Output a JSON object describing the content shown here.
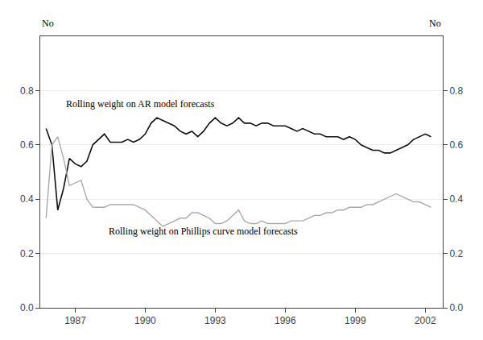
{
  "chart_data": {
    "type": "line",
    "ylabel": "No",
    "y2label": "No",
    "xlim": [
      1985.5,
      2002.75
    ],
    "xticks": [
      1987,
      1990,
      1993,
      1996,
      1999,
      2002
    ],
    "ylim": [
      0.0,
      1.0
    ],
    "yticks": [
      {
        "value": 0.0,
        "label": "0.0"
      },
      0.2,
      0.4,
      0.6,
      0.8
    ],
    "y2lim": [
      0.0,
      1.0
    ],
    "y2ticks": [
      {
        "value": 0.0,
        "label": "0.0"
      },
      0.2,
      0.4,
      0.6,
      0.8
    ],
    "grid": true,
    "x": [
      1985.75,
      1986.0,
      1986.25,
      1986.5,
      1986.75,
      1987.0,
      1987.25,
      1987.5,
      1987.75,
      1988.0,
      1988.25,
      1988.5,
      1988.75,
      1989.0,
      1989.25,
      1989.5,
      1989.75,
      1990.0,
      1990.25,
      1990.5,
      1990.75,
      1991.0,
      1991.25,
      1991.5,
      1991.75,
      1992.0,
      1992.25,
      1992.5,
      1992.75,
      1993.0,
      1993.25,
      1993.5,
      1993.75,
      1994.0,
      1994.25,
      1994.5,
      1994.75,
      1995.0,
      1995.25,
      1995.5,
      1995.75,
      1996.0,
      1996.25,
      1996.5,
      1996.75,
      1997.0,
      1997.25,
      1997.5,
      1997.75,
      1998.0,
      1998.25,
      1998.5,
      1998.75,
      1999.0,
      1999.25,
      1999.5,
      1999.75,
      2000.0,
      2000.25,
      2000.5,
      2000.75,
      2001.0,
      2001.25,
      2001.5,
      2001.75,
      2002.0,
      2002.25
    ],
    "series": [
      {
        "color": "#111111",
        "values": [
          0.66,
          0.6,
          0.36,
          0.44,
          0.55,
          0.53,
          0.52,
          0.54,
          0.6,
          0.62,
          0.64,
          0.61,
          0.61,
          0.61,
          0.62,
          0.61,
          0.62,
          0.64,
          0.68,
          0.7,
          0.69,
          0.68,
          0.67,
          0.65,
          0.64,
          0.65,
          0.63,
          0.65,
          0.68,
          0.7,
          0.68,
          0.67,
          0.68,
          0.7,
          0.68,
          0.68,
          0.67,
          0.68,
          0.68,
          0.67,
          0.67,
          0.67,
          0.66,
          0.65,
          0.66,
          0.65,
          0.64,
          0.64,
          0.63,
          0.63,
          0.63,
          0.62,
          0.63,
          0.62,
          0.6,
          0.59,
          0.58,
          0.58,
          0.57,
          0.57,
          0.58,
          0.59,
          0.6,
          0.62,
          0.63,
          0.64,
          0.63
        ]
      },
      {
        "color": "#aaaaaa",
        "values": [
          0.33,
          0.6,
          0.63,
          0.55,
          0.45,
          0.46,
          0.47,
          0.4,
          0.37,
          0.37,
          0.37,
          0.38,
          0.38,
          0.38,
          0.38,
          0.38,
          0.37,
          0.36,
          0.34,
          0.32,
          0.3,
          0.31,
          0.32,
          0.33,
          0.33,
          0.35,
          0.35,
          0.34,
          0.33,
          0.31,
          0.31,
          0.32,
          0.34,
          0.36,
          0.32,
          0.31,
          0.31,
          0.32,
          0.31,
          0.31,
          0.31,
          0.31,
          0.32,
          0.32,
          0.32,
          0.33,
          0.34,
          0.34,
          0.35,
          0.35,
          0.36,
          0.36,
          0.37,
          0.37,
          0.37,
          0.38,
          0.38,
          0.39,
          0.4,
          0.41,
          0.42,
          0.41,
          0.4,
          0.39,
          0.39,
          0.38,
          0.37
        ]
      }
    ],
    "annotations": [
      {
        "text": "Rolling weight on AR model forecasts",
        "x": 1989.8,
        "y": 0.725
      },
      {
        "text": "Rolling weight on Phillips curve model forecasts",
        "x": 1992.5,
        "y": 0.255
      }
    ]
  }
}
